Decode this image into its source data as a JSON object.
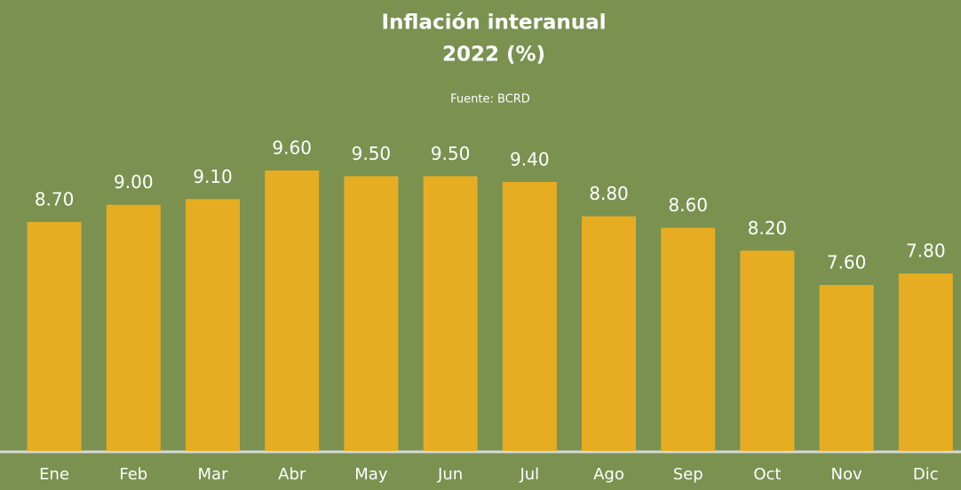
{
  "chart_data": {
    "type": "bar",
    "title": [
      "Inflación interanual",
      "2022 (%)"
    ],
    "source": "Fuente: BCRD",
    "categories": [
      "Ene",
      "Feb",
      "Mar",
      "Abr",
      "May",
      "Jun",
      "Jul",
      "Ago",
      "Sep",
      "Oct",
      "Nov",
      "Dic"
    ],
    "values": [
      8.7,
      9.0,
      9.1,
      9.6,
      9.5,
      9.5,
      9.4,
      8.8,
      8.6,
      8.2,
      7.6,
      7.8
    ],
    "value_labels": [
      "8.70",
      "9.00",
      "9.10",
      "9.60",
      "9.50",
      "9.50",
      "9.40",
      "8.80",
      "8.60",
      "8.20",
      "7.60",
      "7.80"
    ],
    "color": "#e6ad22",
    "ylim": [
      4.7,
      10.5
    ]
  }
}
